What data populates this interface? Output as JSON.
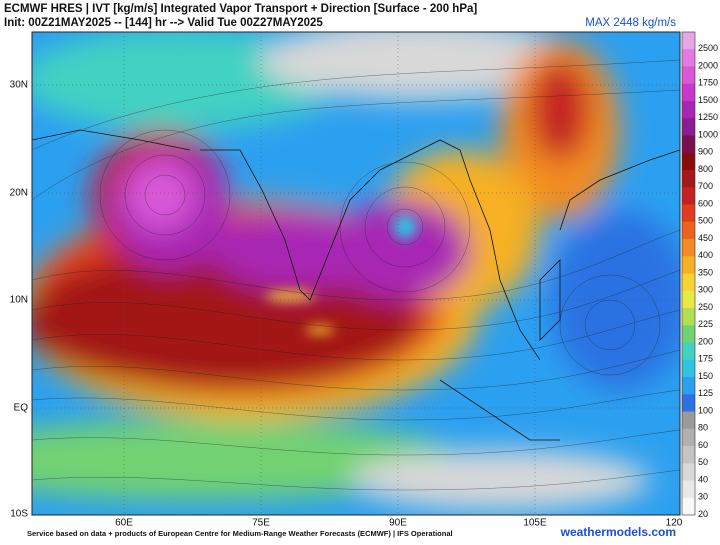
{
  "header": {
    "title": "ECMWF HRES | IVT [kg/m/s] Integrated Vapor Transport + Direction [Surface - 200 hPa]",
    "subtitle": "Init: 00Z21MAY2025 -- [144] hr --> Valid Tue 00Z27MAY2025",
    "max_label": "MAX 2448 kg/m/s"
  },
  "map": {
    "lat_labels": [
      "30N",
      "20N",
      "10N",
      "EQ",
      "10S"
    ],
    "lon_labels": [
      "60E",
      "75E",
      "90E",
      "105E",
      "120"
    ]
  },
  "colorbar": {
    "levels": [
      {
        "label": "2500",
        "color": "#e6a6e6"
      },
      {
        "label": "2000",
        "color": "#e27ae2"
      },
      {
        "label": "1750",
        "color": "#d858d8"
      },
      {
        "label": "1500",
        "color": "#c838cc"
      },
      {
        "label": "1250",
        "color": "#a826b4"
      },
      {
        "label": "1000",
        "color": "#8c1c96"
      },
      {
        "label": "900",
        "color": "#7a1050"
      },
      {
        "label": "800",
        "color": "#8b0a0a"
      },
      {
        "label": "700",
        "color": "#a31818"
      },
      {
        "label": "600",
        "color": "#c42222"
      },
      {
        "label": "500",
        "color": "#e23c20"
      },
      {
        "label": "450",
        "color": "#ee6220"
      },
      {
        "label": "400",
        "color": "#f28c22"
      },
      {
        "label": "350",
        "color": "#f6b024"
      },
      {
        "label": "300",
        "color": "#f6d232"
      },
      {
        "label": "250",
        "color": "#e6ea42"
      },
      {
        "label": "225",
        "color": "#b0e052"
      },
      {
        "label": "200",
        "color": "#72d272"
      },
      {
        "label": "175",
        "color": "#42d2c2"
      },
      {
        "label": "150",
        "color": "#32c2e2"
      },
      {
        "label": "125",
        "color": "#2ca0f0"
      },
      {
        "label": "100",
        "color": "#2c72e2"
      },
      {
        "label": "80",
        "color": "#9a9a9a"
      },
      {
        "label": "60",
        "color": "#b0b0b0"
      },
      {
        "label": "50",
        "color": "#c4c4c4"
      },
      {
        "label": "40",
        "color": "#d8d8d8"
      },
      {
        "label": "30",
        "color": "#e8e8e8"
      },
      {
        "label": "20",
        "color": "#f8f8f8"
      }
    ]
  },
  "footer": {
    "credit": "Service based on data + products of European Centre for Medium-Range Weather Forecasts (ECMWF) | IFS Operational",
    "site": "weathermodels.com"
  }
}
